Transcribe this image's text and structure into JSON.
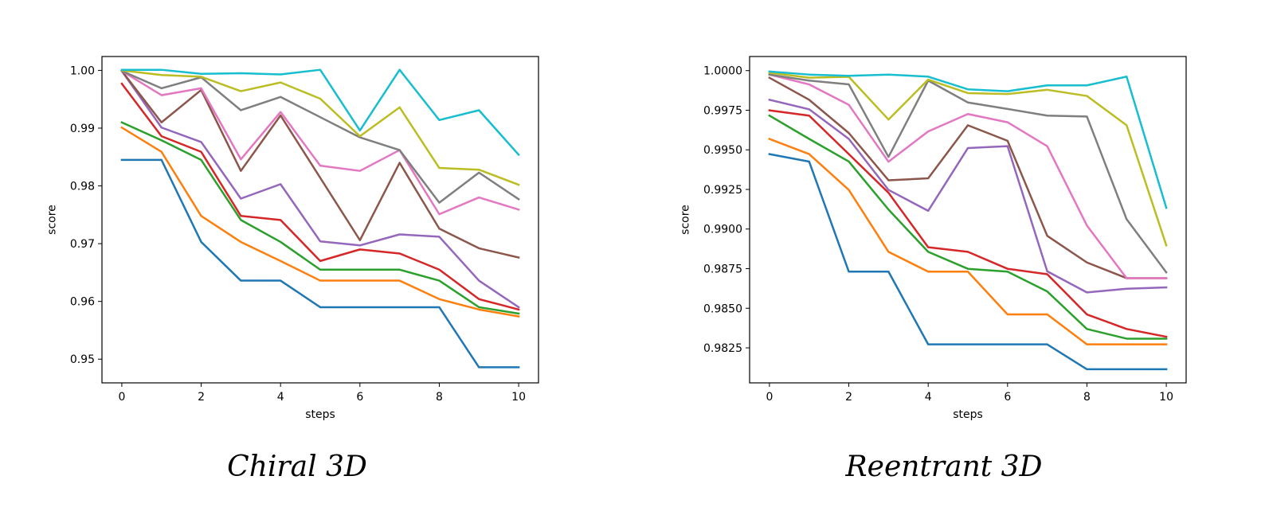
{
  "chart_data": [
    {
      "type": "line",
      "caption": "Chiral 3D",
      "xlabel": "steps",
      "ylabel": "score",
      "xlim": [
        -0.5,
        10.5
      ],
      "ylim": [
        0.9459,
        1.0024
      ],
      "xticks": [
        0,
        2,
        4,
        6,
        8,
        10
      ],
      "xtick_labels": [
        "0",
        "2",
        "4",
        "6",
        "8",
        "10"
      ],
      "yticks": [
        0.95,
        0.96,
        0.97,
        0.98,
        0.99,
        1.0
      ],
      "ytick_labels": [
        "0.95",
        "0.96",
        "0.97",
        "0.98",
        "0.99",
        "1.00"
      ],
      "grid": false,
      "x": [
        0,
        1,
        2,
        3,
        4,
        5,
        6,
        7,
        8,
        9,
        10
      ],
      "series": [
        {
          "color": "#1f77b4",
          "values": [
            0.9845,
            0.9845,
            0.9703,
            0.9636,
            0.9636,
            0.959,
            0.959,
            0.959,
            0.959,
            0.9486,
            0.9486
          ]
        },
        {
          "color": "#ff7f0e",
          "values": [
            0.9901,
            0.9859,
            0.9748,
            0.9703,
            0.967,
            0.9636,
            0.9636,
            0.9636,
            0.9604,
            0.9586,
            0.9574
          ]
        },
        {
          "color": "#2ca02c",
          "values": [
            0.991,
            0.9879,
            0.9845,
            0.9741,
            0.9703,
            0.9655,
            0.9655,
            0.9655,
            0.9636,
            0.959,
            0.9579
          ]
        },
        {
          "color": "#d62728",
          "values": [
            0.9977,
            0.9886,
            0.9859,
            0.9748,
            0.9741,
            0.967,
            0.969,
            0.9683,
            0.9655,
            0.9604,
            0.9586
          ]
        },
        {
          "color": "#9467bd",
          "values": [
            0.9999,
            0.9901,
            0.9876,
            0.9778,
            0.9803,
            0.9704,
            0.9697,
            0.9716,
            0.9712,
            0.9636,
            0.959
          ]
        },
        {
          "color": "#8c564b",
          "values": [
            0.9999,
            0.991,
            0.9966,
            0.9826,
            0.9922,
            0.9814,
            0.9706,
            0.984,
            0.9726,
            0.9692,
            0.9676
          ]
        },
        {
          "color": "#e377c2",
          "values": [
            0.9999,
            0.9957,
            0.9969,
            0.9846,
            0.9928,
            0.9835,
            0.9826,
            0.9862,
            0.9751,
            0.978,
            0.9759
          ]
        },
        {
          "color": "#7f7f7f",
          "values": [
            0.9999,
            0.9969,
            0.9988,
            0.9931,
            0.9954,
            0.9919,
            0.9884,
            0.9862,
            0.9771,
            0.9823,
            0.9777
          ]
        },
        {
          "color": "#bcbd22",
          "values": [
            1.0,
            0.9992,
            0.9989,
            0.9964,
            0.9979,
            0.9951,
            0.9886,
            0.9936,
            0.9831,
            0.9828,
            0.9802
          ]
        },
        {
          "color": "#17becf",
          "values": [
            1.0001,
            1.0001,
            0.9994,
            0.9995,
            0.9993,
            1.0001,
            0.9896,
            1.0001,
            0.9914,
            0.9931,
            0.9854
          ]
        }
      ]
    },
    {
      "type": "line",
      "caption": "Reentrant 3D",
      "xlabel": "steps",
      "ylabel": "score",
      "xlim": [
        -0.5,
        10.5
      ],
      "ylim": [
        0.98029,
        1.00089
      ],
      "xticks": [
        0,
        2,
        4,
        6,
        8,
        10
      ],
      "xtick_labels": [
        "0",
        "2",
        "4",
        "6",
        "8",
        "10"
      ],
      "yticks": [
        0.9825,
        0.985,
        0.9875,
        0.99,
        0.9925,
        0.995,
        0.9975,
        1.0
      ],
      "ytick_labels": [
        "0.9825",
        "0.9850",
        "0.9875",
        "0.9900",
        "0.9925",
        "0.9950",
        "0.9975",
        "1.0000"
      ],
      "grid": false,
      "x": [
        0,
        1,
        2,
        3,
        4,
        5,
        6,
        7,
        8,
        9,
        10
      ],
      "series": [
        {
          "color": "#1f77b4",
          "values": [
            0.99473,
            0.99426,
            0.98731,
            0.98731,
            0.98272,
            0.98272,
            0.98272,
            0.98272,
            0.98115,
            0.98115,
            0.98115
          ]
        },
        {
          "color": "#ff7f0e",
          "values": [
            0.99569,
            0.99473,
            0.99247,
            0.98856,
            0.98731,
            0.98731,
            0.98461,
            0.98461,
            0.98272,
            0.98272,
            0.98272
          ]
        },
        {
          "color": "#2ca02c",
          "values": [
            0.99716,
            0.99569,
            0.99426,
            0.99123,
            0.98856,
            0.98749,
            0.98731,
            0.98606,
            0.98369,
            0.98308,
            0.98308
          ]
        },
        {
          "color": "#d62728",
          "values": [
            0.99749,
            0.99716,
            0.99473,
            0.99229,
            0.98885,
            0.98856,
            0.98749,
            0.98715,
            0.98461,
            0.98369,
            0.9832
          ]
        },
        {
          "color": "#9467bd",
          "values": [
            0.99816,
            0.99756,
            0.99569,
            0.99247,
            0.99115,
            0.99511,
            0.99523,
            0.98733,
            0.986,
            0.98623,
            0.98632
          ]
        },
        {
          "color": "#8c564b",
          "values": [
            0.99955,
            0.99816,
            0.99606,
            0.99308,
            0.9932,
            0.99655,
            0.99557,
            0.98957,
            0.98789,
            0.9869,
            0.9869
          ]
        },
        {
          "color": "#e377c2",
          "values": [
            0.99975,
            0.99913,
            0.99784,
            0.99425,
            0.99616,
            0.99726,
            0.99674,
            0.99523,
            0.99022,
            0.9869,
            0.9869
          ]
        },
        {
          "color": "#7f7f7f",
          "values": [
            0.99975,
            0.99937,
            0.99913,
            0.99455,
            0.99937,
            0.99799,
            0.99758,
            0.99716,
            0.9971,
            0.99062,
            0.98727
          ]
        },
        {
          "color": "#bcbd22",
          "values": [
            0.99987,
            0.99955,
            0.99961,
            0.99691,
            0.99943,
            0.99858,
            0.99852,
            0.99879,
            0.9984,
            0.99655,
            0.98897
          ]
        },
        {
          "color": "#17becf",
          "values": [
            0.99994,
            0.99975,
            0.99967,
            0.99975,
            0.99962,
            0.99882,
            0.9987,
            0.99907,
            0.99907,
            0.99962,
            0.99134
          ]
        }
      ]
    }
  ]
}
